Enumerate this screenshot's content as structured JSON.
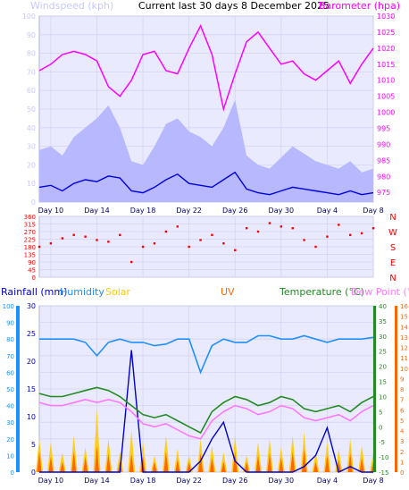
{
  "header": {
    "windspeed_label": "Windspeed (kph)",
    "title": "Current last 30 days 8 December 2025",
    "barometer_label": "Barometer (hpa)"
  },
  "colors": {
    "wind_avg": "#0000dd",
    "wind_gust": "#b8b8ff",
    "barometer": "#ff00ff",
    "direction": "#ff0000",
    "rain": "#0000cc",
    "humidity": "#1e90ff",
    "solar": "#ffcc00",
    "uv": "#ff6600",
    "temperature": "#228b22",
    "dewpoint": "#ff77ff",
    "panel_bg": "#eaeaff",
    "wind_axis": "#c8c8ff"
  },
  "chart_data": [
    {
      "type": "line",
      "title": "Current last 30 days 8 December 2025",
      "x_ticks": [
        "Day 10",
        "Day 14",
        "Day 18",
        "Day 22",
        "Day 26",
        "Day 30",
        "Day 4",
        "Day 8"
      ],
      "left_axis": {
        "label": "Windspeed (kph)",
        "ylim": [
          0,
          100
        ],
        "ticks": [
          0,
          10,
          20,
          30,
          40,
          50,
          60,
          70,
          80,
          90,
          100
        ]
      },
      "right_axis": {
        "label": "Barometer (hpa)",
        "ylim": [
          972,
          1030
        ],
        "ticks": [
          975,
          980,
          985,
          990,
          995,
          1000,
          1005,
          1010,
          1015,
          1020,
          1025,
          1030
        ]
      },
      "series": [
        {
          "name": "Windspeed",
          "axis": "left",
          "x": [
            9.0,
            10,
            11,
            12,
            13,
            14,
            15,
            16,
            17,
            18,
            19,
            20,
            21,
            22,
            23,
            24,
            25,
            26,
            27,
            28,
            29,
            30,
            31,
            32,
            33,
            34,
            35,
            36,
            37,
            38
          ],
          "values": [
            8,
            9,
            6,
            10,
            12,
            11,
            14,
            13,
            6,
            5,
            8,
            12,
            15,
            10,
            9,
            8,
            12,
            16,
            7,
            5,
            4,
            6,
            8,
            7,
            6,
            5,
            4,
            6,
            4,
            5
          ]
        },
        {
          "name": "Gust",
          "axis": "left",
          "x": [
            9.0,
            10,
            11,
            12,
            13,
            14,
            15,
            16,
            17,
            18,
            19,
            20,
            21,
            22,
            23,
            24,
            25,
            26,
            27,
            28,
            29,
            30,
            31,
            32,
            33,
            34,
            35,
            36,
            37,
            38
          ],
          "values": [
            28,
            30,
            25,
            35,
            40,
            45,
            52,
            40,
            22,
            20,
            30,
            42,
            45,
            38,
            35,
            30,
            40,
            55,
            25,
            20,
            18,
            24,
            30,
            26,
            22,
            20,
            18,
            22,
            16,
            18
          ]
        },
        {
          "name": "Barometer",
          "axis": "right",
          "x": [
            9.0,
            10,
            11,
            12,
            13,
            14,
            15,
            16,
            17,
            18,
            19,
            20,
            21,
            22,
            23,
            24,
            25,
            26,
            27,
            28,
            29,
            30,
            31,
            32,
            33,
            34,
            35,
            36,
            37,
            38
          ],
          "values": [
            1013,
            1015,
            1018,
            1019,
            1018,
            1016,
            1008,
            1005,
            1010,
            1018,
            1019,
            1013,
            1012,
            1020,
            1027,
            1018,
            1001,
            1012,
            1022,
            1025,
            1020,
            1015,
            1016,
            1012,
            1010,
            1013,
            1016,
            1009,
            1015,
            1020
          ]
        }
      ]
    },
    {
      "type": "scatter",
      "left_axis": {
        "ylim": [
          0,
          360
        ],
        "ticks": [
          0,
          45,
          90,
          135,
          180,
          225,
          270,
          315,
          360
        ]
      },
      "right_axis": {
        "labels": [
          "N",
          "W",
          "S",
          "E",
          "N"
        ]
      },
      "series": [
        {
          "name": "Wind direction",
          "x": [
            9.0,
            10,
            11,
            12,
            13,
            14,
            15,
            16,
            17,
            18,
            19,
            20,
            21,
            22,
            23,
            24,
            25,
            26,
            27,
            28,
            29,
            30,
            31,
            32,
            33,
            34,
            35,
            36,
            37,
            38
          ],
          "values": [
            180,
            200,
            230,
            250,
            240,
            220,
            210,
            250,
            90,
            180,
            200,
            270,
            300,
            180,
            220,
            250,
            200,
            160,
            290,
            270,
            320,
            300,
            290,
            220,
            180,
            240,
            310,
            250,
            260,
            290
          ]
        }
      ]
    },
    {
      "type": "line",
      "legend": [
        "Rainfall (mm)",
        "Humidity",
        "Solar",
        "UV",
        "Temperature (°C)",
        "Dew Point (°C)"
      ],
      "x_ticks": [
        "Day 10",
        "Day 14",
        "Day 18",
        "Day 22",
        "Day 26",
        "Day 30",
        "Day 4",
        "Day 8"
      ],
      "humidity_axis": {
        "ylim": [
          0,
          100
        ],
        "ticks": [
          0,
          10,
          20,
          30,
          40,
          50,
          60,
          70,
          80,
          90,
          100
        ]
      },
      "rain_axis": {
        "ylim": [
          0,
          30
        ],
        "ticks": [
          0,
          5,
          10,
          15,
          20,
          25,
          30
        ]
      },
      "temperature_axis": {
        "ylim": [
          -15,
          40
        ],
        "ticks": [
          -15,
          -10,
          -5,
          0,
          5,
          10,
          15,
          20,
          25,
          30,
          35,
          40
        ]
      },
      "uv_axis": {
        "ylim": [
          0,
          16
        ],
        "ticks": [
          0,
          1,
          2,
          3,
          4,
          5,
          6,
          7,
          8,
          9,
          10,
          11,
          12,
          13,
          14,
          15,
          16
        ]
      },
      "series": [
        {
          "name": "Rainfall (mm)",
          "axis": "rain",
          "x": [
            9.0,
            10,
            11,
            12,
            13,
            14,
            15,
            16,
            17,
            18,
            19,
            20,
            21,
            22,
            23,
            24,
            25,
            26,
            27,
            28,
            29,
            30,
            31,
            32,
            33,
            34,
            35,
            36,
            37,
            38
          ],
          "values": [
            0,
            0,
            0,
            0,
            0,
            0,
            0,
            0,
            22,
            0,
            0,
            0,
            0,
            0,
            2,
            6,
            9,
            2,
            0,
            0,
            0,
            0,
            0,
            1,
            3,
            8,
            0,
            1,
            0,
            0
          ]
        },
        {
          "name": "Humidity",
          "axis": "humidity",
          "x": [
            9.0,
            10,
            11,
            12,
            13,
            14,
            15,
            16,
            17,
            18,
            19,
            20,
            21,
            22,
            23,
            24,
            25,
            26,
            27,
            28,
            29,
            30,
            31,
            32,
            33,
            34,
            35,
            36,
            37,
            38
          ],
          "values": [
            80,
            80,
            80,
            80,
            78,
            70,
            78,
            80,
            78,
            78,
            76,
            77,
            80,
            80,
            60,
            76,
            80,
            78,
            78,
            82,
            82,
            80,
            80,
            82,
            80,
            78,
            80,
            80,
            80,
            81
          ]
        },
        {
          "name": "Temperature (°C)",
          "axis": "temperature",
          "x": [
            9.0,
            10,
            11,
            12,
            13,
            14,
            15,
            16,
            17,
            18,
            19,
            20,
            21,
            22,
            23,
            24,
            25,
            26,
            27,
            28,
            29,
            30,
            31,
            32,
            33,
            34,
            35,
            36,
            37,
            38
          ],
          "values": [
            11,
            10,
            10,
            11,
            12,
            13,
            12,
            10,
            7,
            4,
            3,
            4,
            2,
            0,
            -2,
            5,
            8,
            10,
            9,
            7,
            8,
            10,
            9,
            6,
            5,
            6,
            7,
            5,
            8,
            10
          ]
        },
        {
          "name": "Dew Point (°C)",
          "axis": "temperature",
          "x": [
            9.0,
            10,
            11,
            12,
            13,
            14,
            15,
            16,
            17,
            18,
            19,
            20,
            21,
            22,
            23,
            24,
            25,
            26,
            27,
            28,
            29,
            30,
            31,
            32,
            33,
            34,
            35,
            36,
            37,
            38
          ],
          "values": [
            8,
            7,
            7,
            8,
            9,
            8,
            9,
            8,
            5,
            1,
            0,
            1,
            -1,
            -3,
            -4,
            2,
            5,
            7,
            6,
            4,
            5,
            7,
            6,
            3,
            2,
            3,
            4,
            2,
            5,
            7
          ]
        },
        {
          "name": "Solar",
          "axis": "humidity",
          "x": [
            9.0,
            10,
            11,
            12,
            13,
            14,
            15,
            16,
            17,
            18,
            19,
            20,
            21,
            22,
            23,
            24,
            25,
            26,
            27,
            28,
            29,
            30,
            31,
            32,
            33,
            34,
            35,
            36,
            37,
            38
          ],
          "values": [
            20,
            18,
            12,
            22,
            15,
            38,
            20,
            12,
            25,
            18,
            10,
            22,
            14,
            10,
            20,
            16,
            12,
            22,
            10,
            18,
            20,
            15,
            22,
            24,
            12,
            18,
            14,
            20,
            16,
            12
          ]
        },
        {
          "name": "UV",
          "axis": "uv",
          "x": [
            9.0,
            10,
            11,
            12,
            13,
            14,
            15,
            16,
            17,
            18,
            19,
            20,
            21,
            22,
            23,
            24,
            25,
            26,
            27,
            28,
            29,
            30,
            31,
            32,
            33,
            34,
            35,
            36,
            37,
            38
          ],
          "values": [
            2,
            1.5,
            1,
            2,
            1.5,
            2.5,
            1.8,
            1,
            1.8,
            1.5,
            1,
            2,
            1.2,
            1,
            1.8,
            1.4,
            1,
            2,
            1,
            1.6,
            1.8,
            1.4,
            2,
            2.2,
            1,
            1.6,
            1.2,
            1.8,
            1.4,
            1
          ]
        }
      ]
    }
  ]
}
